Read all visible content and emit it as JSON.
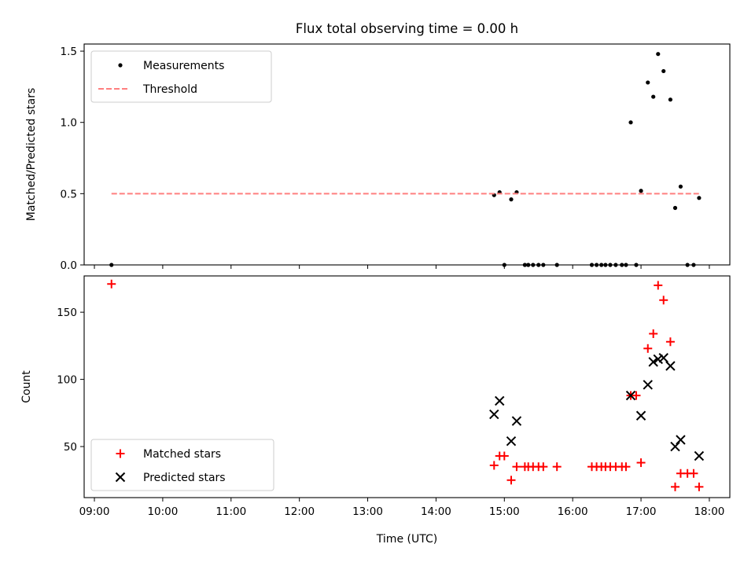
{
  "chart_data": [
    {
      "type": "scatter",
      "title": "Flux total observing time = 0.00 h",
      "xlabel": "",
      "ylabel": "Matched/Predicted stars",
      "x_unit": "hours (UTC)",
      "xlim": [
        8.85,
        18.3
      ],
      "ylim": [
        0,
        1.55
      ],
      "yticks": [
        "0.0",
        "0.5",
        "1.0",
        "1.5"
      ],
      "legend": {
        "placement": "top-left",
        "entries": [
          "Measurements",
          "Threshold"
        ]
      },
      "series": [
        {
          "name": "Measurements",
          "marker": "dot",
          "color": "#000000",
          "x": [
            9.25,
            14.85,
            14.93,
            15.0,
            15.1,
            15.18,
            15.3,
            15.35,
            15.42,
            15.5,
            15.57,
            15.77,
            16.28,
            16.35,
            16.42,
            16.48,
            16.55,
            16.63,
            16.72,
            16.78,
            16.85,
            16.93,
            17.0,
            17.1,
            17.18,
            17.25,
            17.33,
            17.43,
            17.5,
            17.58,
            17.68,
            17.77,
            17.85
          ],
          "y": [
            0.0,
            0.49,
            0.51,
            0.0,
            0.46,
            0.51,
            0.0,
            0.0,
            0.0,
            0.0,
            0.0,
            0.0,
            0.0,
            0.0,
            0.0,
            0.0,
            0.0,
            0.0,
            0.0,
            0.0,
            1.0,
            0.0,
            0.52,
            1.28,
            1.18,
            1.48,
            1.36,
            1.16,
            0.4,
            0.55,
            0.0,
            0.0,
            0.47
          ]
        },
        {
          "name": "Threshold",
          "style": "dashed",
          "color": "#ff7f7f",
          "x": [
            9.25,
            17.85
          ],
          "y": [
            0.5,
            0.5
          ]
        }
      ]
    },
    {
      "type": "scatter",
      "title": "",
      "xlabel": "Time (UTC)",
      "ylabel": "Count",
      "x_unit": "hours (UTC)",
      "xlim": [
        8.85,
        18.3
      ],
      "ylim": [
        12,
        177
      ],
      "xticks": [
        "09:00",
        "10:00",
        "11:00",
        "12:00",
        "13:00",
        "14:00",
        "15:00",
        "16:00",
        "17:00",
        "18:00"
      ],
      "yticks": [
        "50",
        "100",
        "150"
      ],
      "legend": {
        "placement": "bottom-left",
        "entries": [
          "Matched stars",
          "Predicted stars"
        ]
      },
      "series": [
        {
          "name": "Matched stars",
          "marker": "plus",
          "color": "#ff0000",
          "x": [
            9.25,
            14.85,
            14.93,
            15.0,
            15.1,
            15.18,
            15.3,
            15.35,
            15.42,
            15.5,
            15.57,
            15.77,
            16.28,
            16.35,
            16.42,
            16.48,
            16.55,
            16.63,
            16.72,
            16.78,
            16.85,
            16.93,
            17.0,
            17.1,
            17.18,
            17.25,
            17.33,
            17.43,
            17.5,
            17.58,
            17.68,
            17.77,
            17.85
          ],
          "y": [
            171,
            36,
            43,
            43,
            25,
            35,
            35,
            35,
            35,
            35,
            35,
            35,
            35,
            35,
            35,
            35,
            35,
            35,
            35,
            35,
            88,
            88,
            38,
            123,
            134,
            170,
            159,
            128,
            20,
            30,
            30,
            30,
            20
          ]
        },
        {
          "name": "Predicted stars",
          "marker": "x",
          "color": "#000000",
          "x": [
            14.85,
            14.93,
            15.1,
            15.18,
            16.85,
            17.0,
            17.1,
            17.18,
            17.25,
            17.33,
            17.43,
            17.5,
            17.58,
            17.85
          ],
          "y": [
            74,
            84,
            54,
            69,
            88,
            73,
            96,
            113,
            115,
            116,
            110,
            50,
            55,
            43
          ]
        }
      ]
    }
  ]
}
